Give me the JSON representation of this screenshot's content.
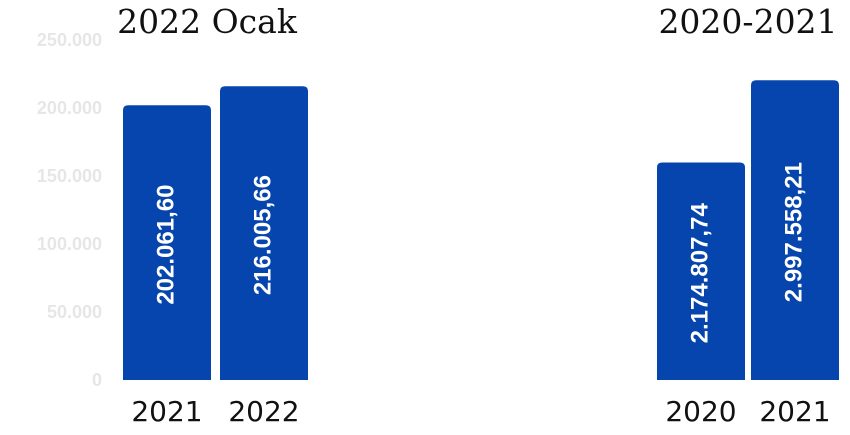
{
  "colors": {
    "bar": "#0645ad",
    "label": "#ffffff",
    "tick": "#e6e6e6"
  },
  "chart_data": [
    {
      "type": "bar",
      "title": "2022 Ocak",
      "categories": [
        "2021",
        "2022"
      ],
      "values": [
        202061.6,
        216005.66
      ],
      "data_labels": [
        "202.061,60",
        "216.005,66"
      ],
      "ylim": [
        0,
        250000
      ],
      "yticks": [
        {
          "value": 0,
          "label": "0"
        },
        {
          "value": 50000,
          "label": "50.000"
        },
        {
          "value": 100000,
          "label": "100.000"
        },
        {
          "value": 150000,
          "label": "150.000"
        },
        {
          "value": 200000,
          "label": "200.000"
        },
        {
          "value": 250000,
          "label": "250.000"
        }
      ]
    },
    {
      "type": "bar",
      "title": "2020-2021",
      "categories": [
        "2020",
        "2021"
      ],
      "values": [
        2174807.74,
        2997558.21
      ],
      "data_labels": [
        "2.174.807,74",
        "2.997.558,21"
      ],
      "ylim": [
        0,
        3500000
      ]
    }
  ]
}
